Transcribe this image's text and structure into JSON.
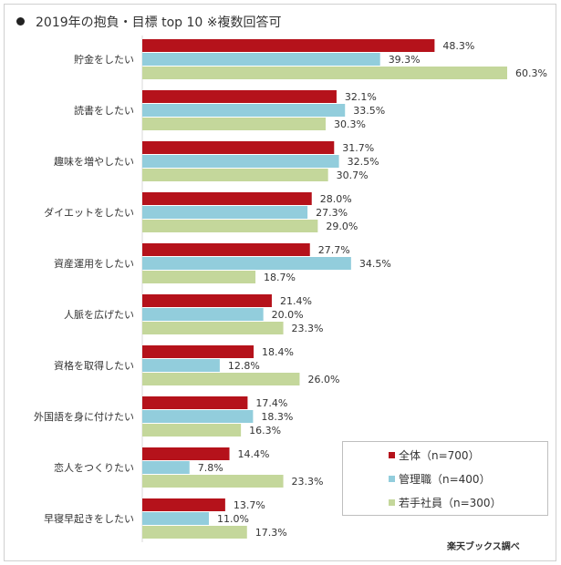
{
  "title": "2019年の抱負・目標 top 10 ※複数回答可",
  "source": "楽天ブックス調べ",
  "chart_data": {
    "type": "bar",
    "orientation": "horizontal",
    "title": "2019年の抱負・目標 top 10 ※複数回答可",
    "categories": [
      "貯金をしたい",
      "読書をしたい",
      "趣味を増やしたい",
      "ダイエットをしたい",
      "資産運用をしたい",
      "人脈を広げたい",
      "資格を取得したい",
      "外国語を身に付けたい",
      "恋人をつくりたい",
      "早寝早起きをしたい"
    ],
    "series": [
      {
        "name": "全体（n=700）",
        "color": "#b5121b",
        "values": [
          48.3,
          32.1,
          31.7,
          28.0,
          27.7,
          21.4,
          18.4,
          17.4,
          14.4,
          13.7
        ]
      },
      {
        "name": "管理職（n=400）",
        "color": "#92cddc",
        "values": [
          39.3,
          33.5,
          32.5,
          27.3,
          34.5,
          20.0,
          12.8,
          18.3,
          7.8,
          11.0
        ]
      },
      {
        "name": "若手社員（n=300）",
        "color": "#c4d79b",
        "values": [
          60.3,
          30.3,
          30.7,
          29.0,
          18.7,
          23.3,
          26.0,
          16.3,
          23.3,
          17.3
        ]
      }
    ],
    "value_format": "%",
    "xlim": [
      0,
      60.3
    ],
    "grid": false,
    "legend": "bottom-right"
  }
}
